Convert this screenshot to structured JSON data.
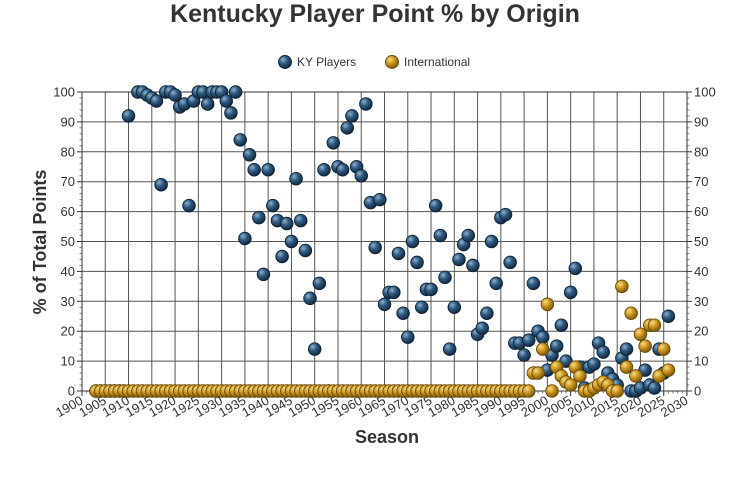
{
  "chart_data": {
    "type": "scatter",
    "title": "Kentucky Player Point % by Origin",
    "xlabel": "Season",
    "ylabel": "% of Total Points",
    "xlim": [
      1900,
      2030
    ],
    "ylim": [
      0,
      100
    ],
    "x_ticks": [
      1900,
      1905,
      1910,
      1915,
      1920,
      1925,
      1930,
      1935,
      1940,
      1945,
      1950,
      1955,
      1960,
      1965,
      1970,
      1975,
      1980,
      1985,
      1990,
      1995,
      2000,
      2005,
      2010,
      2015,
      2020,
      2025,
      2030
    ],
    "y_ticks": [
      0,
      10,
      20,
      30,
      40,
      50,
      60,
      70,
      80,
      90,
      100
    ],
    "grid": true,
    "legend_position": "top-center",
    "series": [
      {
        "name": "KY Players",
        "color": "#234a6e",
        "points": [
          [
            1903,
            0
          ],
          [
            1904,
            0
          ],
          [
            1905,
            0
          ],
          [
            1906,
            0
          ],
          [
            1907,
            0
          ],
          [
            1908,
            0
          ],
          [
            1909,
            0
          ],
          [
            1910,
            92
          ],
          [
            1912,
            100
          ],
          [
            1913,
            100
          ],
          [
            1914,
            99
          ],
          [
            1915,
            98
          ],
          [
            1916,
            97
          ],
          [
            1917,
            69
          ],
          [
            1918,
            100
          ],
          [
            1919,
            100
          ],
          [
            1920,
            99
          ],
          [
            1921,
            95
          ],
          [
            1922,
            96
          ],
          [
            1923,
            62
          ],
          [
            1924,
            97
          ],
          [
            1925,
            100
          ],
          [
            1926,
            100
          ],
          [
            1927,
            96
          ],
          [
            1928,
            100
          ],
          [
            1929,
            100
          ],
          [
            1930,
            100
          ],
          [
            1931,
            97
          ],
          [
            1932,
            93
          ],
          [
            1933,
            100
          ],
          [
            1934,
            84
          ],
          [
            1935,
            51
          ],
          [
            1936,
            79
          ],
          [
            1937,
            74
          ],
          [
            1938,
            58
          ],
          [
            1939,
            39
          ],
          [
            1940,
            74
          ],
          [
            1941,
            62
          ],
          [
            1942,
            57
          ],
          [
            1943,
            45
          ],
          [
            1944,
            56
          ],
          [
            1945,
            50
          ],
          [
            1946,
            71
          ],
          [
            1947,
            57
          ],
          [
            1948,
            47
          ],
          [
            1949,
            31
          ],
          [
            1950,
            14
          ],
          [
            1951,
            36
          ],
          [
            1952,
            74
          ],
          [
            1953,
            0
          ],
          [
            1954,
            83
          ],
          [
            1955,
            75
          ],
          [
            1956,
            74
          ],
          [
            1957,
            88
          ],
          [
            1958,
            92
          ],
          [
            1959,
            75
          ],
          [
            1960,
            72
          ],
          [
            1961,
            96
          ],
          [
            1962,
            63
          ],
          [
            1963,
            48
          ],
          [
            1964,
            64
          ],
          [
            1965,
            29
          ],
          [
            1966,
            33
          ],
          [
            1967,
            33
          ],
          [
            1968,
            46
          ],
          [
            1969,
            26
          ],
          [
            1970,
            18
          ],
          [
            1971,
            50
          ],
          [
            1972,
            43
          ],
          [
            1973,
            28
          ],
          [
            1974,
            34
          ],
          [
            1975,
            34
          ],
          [
            1976,
            62
          ],
          [
            1977,
            52
          ],
          [
            1978,
            38
          ],
          [
            1979,
            14
          ],
          [
            1980,
            28
          ],
          [
            1981,
            44
          ],
          [
            1982,
            49
          ],
          [
            1983,
            52
          ],
          [
            1984,
            42
          ],
          [
            1985,
            19
          ],
          [
            1986,
            21
          ],
          [
            1987,
            26
          ],
          [
            1988,
            50
          ],
          [
            1989,
            36
          ],
          [
            1990,
            58
          ],
          [
            1991,
            59
          ],
          [
            1992,
            43
          ],
          [
            1993,
            16
          ],
          [
            1994,
            16
          ],
          [
            1995,
            12
          ],
          [
            1996,
            17
          ],
          [
            1997,
            36
          ],
          [
            1998,
            20
          ],
          [
            1999,
            18
          ],
          [
            2000,
            7
          ],
          [
            2001,
            12
          ],
          [
            2002,
            15
          ],
          [
            2003,
            22
          ],
          [
            2004,
            10
          ],
          [
            2005,
            33
          ],
          [
            2006,
            41
          ],
          [
            2007,
            8
          ],
          [
            2008,
            1
          ],
          [
            2009,
            8
          ],
          [
            2010,
            9
          ],
          [
            2011,
            16
          ],
          [
            2012,
            13
          ],
          [
            2013,
            6
          ],
          [
            2014,
            4
          ],
          [
            2015,
            2
          ],
          [
            2016,
            11
          ],
          [
            2017,
            14
          ],
          [
            2018,
            0
          ],
          [
            2019,
            0
          ],
          [
            2020,
            1
          ],
          [
            2021,
            7
          ],
          [
            2022,
            2
          ],
          [
            2023,
            1
          ],
          [
            2024,
            14
          ],
          [
            2025,
            6
          ],
          [
            2026,
            25
          ]
        ]
      },
      {
        "name": "International",
        "color": "#c8951e",
        "points": [
          [
            1903,
            0
          ],
          [
            1904,
            0
          ],
          [
            1905,
            0
          ],
          [
            1906,
            0
          ],
          [
            1907,
            0
          ],
          [
            1908,
            0
          ],
          [
            1909,
            0
          ],
          [
            1910,
            0
          ],
          [
            1911,
            0
          ],
          [
            1912,
            0
          ],
          [
            1913,
            0
          ],
          [
            1914,
            0
          ],
          [
            1915,
            0
          ],
          [
            1916,
            0
          ],
          [
            1917,
            0
          ],
          [
            1918,
            0
          ],
          [
            1919,
            0
          ],
          [
            1920,
            0
          ],
          [
            1921,
            0
          ],
          [
            1922,
            0
          ],
          [
            1923,
            0
          ],
          [
            1924,
            0
          ],
          [
            1925,
            0
          ],
          [
            1926,
            0
          ],
          [
            1927,
            0
          ],
          [
            1928,
            0
          ],
          [
            1929,
            0
          ],
          [
            1930,
            0
          ],
          [
            1931,
            0
          ],
          [
            1932,
            0
          ],
          [
            1933,
            0
          ],
          [
            1934,
            0
          ],
          [
            1935,
            0
          ],
          [
            1936,
            0
          ],
          [
            1937,
            0
          ],
          [
            1938,
            0
          ],
          [
            1939,
            0
          ],
          [
            1940,
            0
          ],
          [
            1941,
            0
          ],
          [
            1942,
            0
          ],
          [
            1943,
            0
          ],
          [
            1944,
            0
          ],
          [
            1945,
            0
          ],
          [
            1946,
            0
          ],
          [
            1947,
            0
          ],
          [
            1948,
            0
          ],
          [
            1949,
            0
          ],
          [
            1950,
            0
          ],
          [
            1951,
            0
          ],
          [
            1952,
            0
          ],
          [
            1953,
            0
          ],
          [
            1954,
            0
          ],
          [
            1955,
            0
          ],
          [
            1956,
            0
          ],
          [
            1957,
            0
          ],
          [
            1958,
            0
          ],
          [
            1959,
            0
          ],
          [
            1960,
            0
          ],
          [
            1961,
            0
          ],
          [
            1962,
            0
          ],
          [
            1963,
            0
          ],
          [
            1964,
            0
          ],
          [
            1965,
            0
          ],
          [
            1966,
            0
          ],
          [
            1967,
            0
          ],
          [
            1968,
            0
          ],
          [
            1969,
            0
          ],
          [
            1970,
            0
          ],
          [
            1971,
            0
          ],
          [
            1972,
            0
          ],
          [
            1973,
            0
          ],
          [
            1974,
            0
          ],
          [
            1975,
            0
          ],
          [
            1976,
            0
          ],
          [
            1977,
            0
          ],
          [
            1978,
            0
          ],
          [
            1979,
            0
          ],
          [
            1980,
            0
          ],
          [
            1981,
            0
          ],
          [
            1982,
            0
          ],
          [
            1983,
            0
          ],
          [
            1984,
            0
          ],
          [
            1985,
            0
          ],
          [
            1986,
            0
          ],
          [
            1987,
            0
          ],
          [
            1988,
            0
          ],
          [
            1989,
            0
          ],
          [
            1990,
            0
          ],
          [
            1991,
            0
          ],
          [
            1992,
            0
          ],
          [
            1993,
            0
          ],
          [
            1994,
            0
          ],
          [
            1995,
            0
          ],
          [
            1996,
            0
          ],
          [
            1997,
            6
          ],
          [
            1998,
            6
          ],
          [
            1999,
            14
          ],
          [
            2000,
            29
          ],
          [
            2001,
            0
          ],
          [
            2002,
            8
          ],
          [
            2003,
            5
          ],
          [
            2004,
            3
          ],
          [
            2005,
            2
          ],
          [
            2006,
            8
          ],
          [
            2007,
            5
          ],
          [
            2008,
            0
          ],
          [
            2009,
            0
          ],
          [
            2010,
            1
          ],
          [
            2011,
            2
          ],
          [
            2012,
            3
          ],
          [
            2013,
            2
          ],
          [
            2014,
            0
          ],
          [
            2015,
            0
          ],
          [
            2016,
            35
          ],
          [
            2017,
            8
          ],
          [
            2018,
            26
          ],
          [
            2019,
            5
          ],
          [
            2020,
            19
          ],
          [
            2021,
            15
          ],
          [
            2022,
            22
          ],
          [
            2023,
            22
          ],
          [
            2024,
            5
          ],
          [
            2025,
            14
          ],
          [
            2026,
            7
          ]
        ]
      }
    ]
  }
}
